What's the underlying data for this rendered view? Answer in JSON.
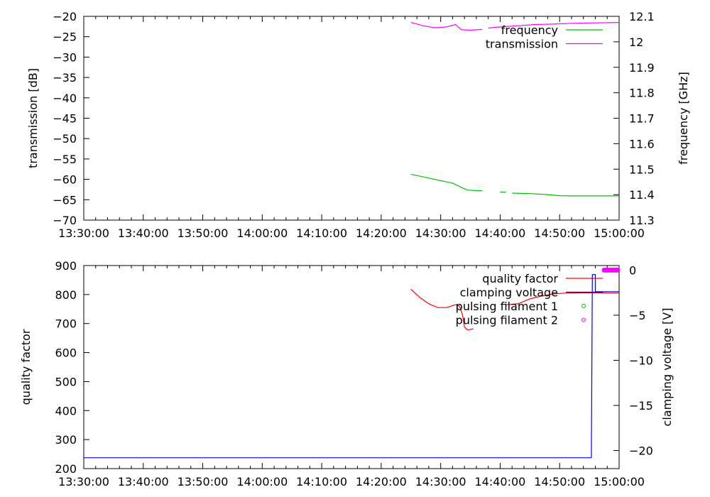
{
  "chart_data": [
    {
      "type": "line",
      "x_ticks": [
        "13:30:00",
        "13:40:00",
        "13:50:00",
        "14:00:00",
        "14:10:00",
        "14:20:00",
        "14:30:00",
        "14:40:00",
        "14:50:00",
        "15:00:00"
      ],
      "xlim": [
        "13:30:00",
        "15:00:00"
      ],
      "ylabel": "transmission [dB]",
      "ylim": [
        -70,
        -20
      ],
      "y_ticks": [
        "-20",
        "-25",
        "-30",
        "-35",
        "-40",
        "-45",
        "-50",
        "-55",
        "-60",
        "-65",
        "-70"
      ],
      "y2label": "frequency [GHz]",
      "y2lim": [
        11.3,
        12.1
      ],
      "y2_ticks": [
        "12.1",
        "12",
        "11.9",
        "11.8",
        "11.7",
        "11.6",
        "11.5",
        "11.4",
        "11.3"
      ],
      "legend": [
        "frequency",
        "transmission"
      ],
      "legend_position": "top-right",
      "series": [
        {
          "name": "frequency",
          "axis": "y2",
          "color": "#00c000",
          "segments": [
            [
              [
                "14:25:00",
                11.48
              ],
              [
                "14:28:00",
                11.465
              ],
              [
                "14:30:00",
                11.455
              ],
              [
                "14:32:00",
                11.445
              ],
              [
                "14:33:30",
                11.428
              ],
              [
                "14:34:30",
                11.418
              ],
              [
                "14:36:00",
                11.416
              ],
              [
                "14:37:00",
                11.415
              ]
            ],
            [
              [
                "14:40:00",
                11.41
              ],
              [
                "14:41:00",
                11.409
              ]
            ],
            [
              [
                "14:42:00",
                11.406
              ],
              [
                "14:45:00",
                11.404
              ],
              [
                "14:48:00",
                11.4
              ],
              [
                "14:50:00",
                11.396
              ],
              [
                "14:52:00",
                11.395
              ],
              [
                "14:56:00",
                11.395
              ],
              [
                "15:00:00",
                11.395
              ]
            ]
          ]
        },
        {
          "name": "transmission",
          "axis": "y",
          "color": "#ff00ff",
          "segments": [
            [
              [
                "14:25:00",
                -21.5
              ],
              [
                "14:27:00",
                -22.3
              ],
              [
                "14:29:00",
                -22.8
              ],
              [
                "14:31:00",
                -22.6
              ],
              [
                "14:32:30",
                -22.0
              ],
              [
                "14:33:30",
                -23.3
              ],
              [
                "14:35:00",
                -23.4
              ],
              [
                "14:37:00",
                -23.2
              ]
            ],
            [
              [
                "14:38:00",
                -22.9
              ],
              [
                "14:40:00",
                -22.6
              ],
              [
                "14:43:00",
                -22.3
              ],
              [
                "14:46:00",
                -22.0
              ],
              [
                "14:49:00",
                -21.9
              ],
              [
                "14:52:00",
                -21.7
              ],
              [
                "14:56:00",
                -21.6
              ],
              [
                "15:00:00",
                -21.5
              ]
            ]
          ]
        }
      ]
    },
    {
      "type": "line",
      "x_ticks": [
        "13:30:00",
        "13:40:00",
        "13:50:00",
        "14:00:00",
        "14:10:00",
        "14:20:00",
        "14:30:00",
        "14:40:00",
        "14:50:00",
        "15:00:00"
      ],
      "xlim": [
        "13:30:00",
        "15:00:00"
      ],
      "ylabel": "quality factor",
      "ylim": [
        200,
        900
      ],
      "y_ticks": [
        "900",
        "800",
        "700",
        "600",
        "500",
        "400",
        "300",
        "200"
      ],
      "y2label": "clamping voltage [V]",
      "y2lim": [
        -22,
        0.5
      ],
      "y2_ticks": [
        "0",
        "-5",
        "-10",
        "-15",
        "-20"
      ],
      "legend": [
        "quality factor",
        "clamping voltage",
        "pulsing filament 1",
        "pulsing filament 2"
      ],
      "legend_position": "top-right",
      "series": [
        {
          "name": "quality factor",
          "axis": "y",
          "color": "#ff0000",
          "segments": [
            [
              [
                "14:25:00",
                818
              ],
              [
                "14:26:30",
                790
              ],
              [
                "14:28:00",
                768
              ],
              [
                "14:29:30",
                755
              ],
              [
                "14:31:00",
                755
              ],
              [
                "14:32:30",
                765
              ],
              [
                "14:33:10",
                760
              ],
              [
                "14:33:40",
                730
              ],
              [
                "14:34:00",
                688
              ],
              [
                "14:34:30",
                678
              ],
              [
                "14:35:30",
                682
              ]
            ],
            [
              [
                "14:41:00",
                765
              ],
              [
                "14:43:00",
                768
              ],
              [
                "14:45:00",
                785
              ],
              [
                "14:47:00",
                795
              ],
              [
                "14:49:00",
                802
              ],
              [
                "14:51:00",
                805
              ],
              [
                "14:54:00",
                806
              ],
              [
                "14:55:50",
                806
              ],
              [
                "14:56:10",
                806
              ],
              [
                "14:58:00",
                805
              ],
              [
                "15:00:00",
                805
              ]
            ]
          ]
        },
        {
          "name": "clamping voltage",
          "axis": "y2",
          "color": "#0000ff",
          "segments": [
            [
              [
                "13:30:00",
                -20.8
              ],
              [
                "14:55:20",
                -20.8
              ],
              [
                "14:55:30",
                -0.5
              ],
              [
                "14:56:00",
                -0.5
              ],
              [
                "14:56:00",
                -2.4
              ],
              [
                "15:00:00",
                -2.4
              ]
            ]
          ]
        },
        {
          "name": "pulsing filament 1",
          "axis": "y2",
          "color": "#00c000",
          "marker": "circle",
          "points": []
        },
        {
          "name": "pulsing filament 2",
          "axis": "y2",
          "color": "#ff00ff",
          "marker": "circle",
          "points": [
            [
              "14:57:30",
              0
            ],
            [
              "14:57:45",
              0
            ],
            [
              "14:58:00",
              0
            ],
            [
              "14:58:15",
              0
            ],
            [
              "14:58:30",
              0
            ],
            [
              "14:58:45",
              0
            ],
            [
              "14:59:00",
              0
            ],
            [
              "14:59:15",
              0
            ],
            [
              "14:59:30",
              0
            ],
            [
              "14:59:45",
              0
            ]
          ]
        }
      ]
    }
  ]
}
